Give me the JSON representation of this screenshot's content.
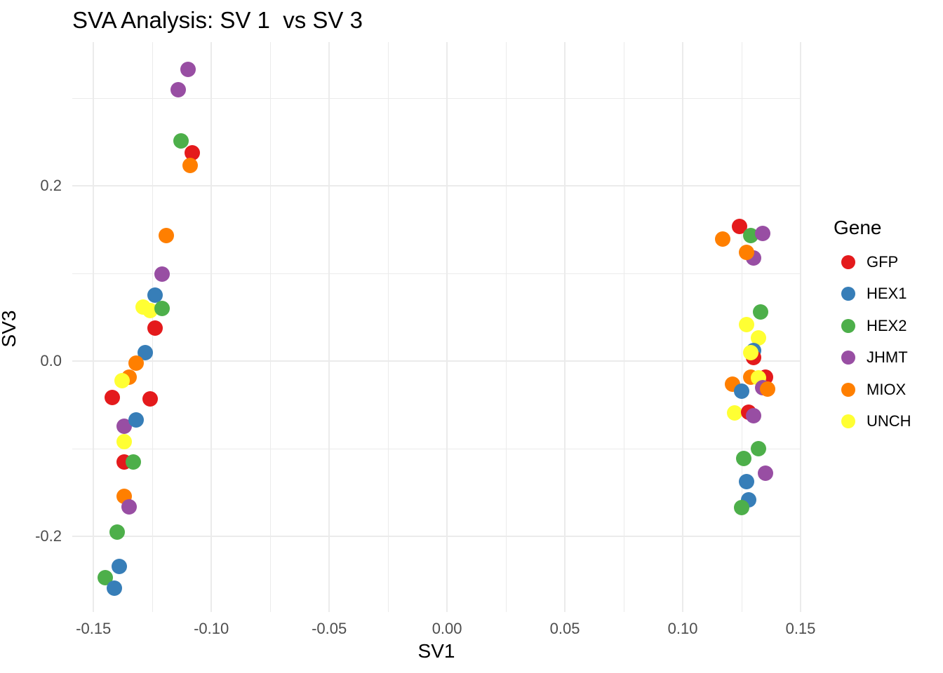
{
  "colors": {
    "background": "#FFFFFF",
    "grid": "#EBEBEB",
    "tick_text": "#4D4D4D",
    "text": "#000000"
  },
  "chart_data": {
    "type": "scatter",
    "title": "SVA Analysis: SV 1  vs SV 3",
    "xlabel": "SV1",
    "ylabel": "SV3",
    "xlim": [
      -0.159,
      0.15
    ],
    "ylim": [
      -0.286,
      0.364
    ],
    "grid": "on",
    "x_major_ticks": [
      {
        "value": -0.15,
        "label": "-0.15"
      },
      {
        "value": -0.1,
        "label": "-0.10"
      },
      {
        "value": -0.05,
        "label": "-0.05"
      },
      {
        "value": 0.0,
        "label": "0.00"
      },
      {
        "value": 0.05,
        "label": "0.05"
      },
      {
        "value": 0.1,
        "label": "0.10"
      },
      {
        "value": 0.15,
        "label": "0.15"
      }
    ],
    "x_minor_ticks": [
      -0.125,
      -0.075,
      -0.025,
      0.025,
      0.075,
      0.125
    ],
    "y_major_ticks": [
      {
        "value": 0.2,
        "label": "0.2"
      },
      {
        "value": 0.0,
        "label": "0.0"
      },
      {
        "value": -0.2,
        "label": "-0.2"
      }
    ],
    "y_minor_ticks": [
      0.3,
      0.1,
      -0.1
    ],
    "legend": {
      "title": "Gene",
      "position": "right",
      "entries": [
        {
          "label": "GFP",
          "color": "#E41A1C"
        },
        {
          "label": "HEX1",
          "color": "#377EB8"
        },
        {
          "label": "HEX2",
          "color": "#4DAF4A"
        },
        {
          "label": "JHMT",
          "color": "#984EA3"
        },
        {
          "label": "MIOX",
          "color": "#FF7F00"
        },
        {
          "label": "UNCH",
          "color": "#FFFF33"
        }
      ]
    },
    "gene_colors": {
      "GFP": "#E41A1C",
      "HEX1": "#377EB8",
      "HEX2": "#4DAF4A",
      "JHMT": "#984EA3",
      "MIOX": "#FF7F00",
      "UNCH": "#FFFF33"
    },
    "points": [
      {
        "gene": "JHMT",
        "x": -0.11,
        "y": 0.333
      },
      {
        "gene": "JHMT",
        "x": -0.114,
        "y": 0.31
      },
      {
        "gene": "HEX2",
        "x": -0.113,
        "y": 0.251
      },
      {
        "gene": "GFP",
        "x": -0.108,
        "y": 0.238
      },
      {
        "gene": "MIOX",
        "x": -0.109,
        "y": 0.223
      },
      {
        "gene": "MIOX",
        "x": -0.119,
        "y": 0.143
      },
      {
        "gene": "JHMT",
        "x": -0.121,
        "y": 0.099
      },
      {
        "gene": "HEX1",
        "x": -0.124,
        "y": 0.075
      },
      {
        "gene": "GFP",
        "x": -0.124,
        "y": 0.038
      },
      {
        "gene": "UNCH",
        "x": -0.129,
        "y": 0.062
      },
      {
        "gene": "UNCH",
        "x": -0.126,
        "y": 0.058
      },
      {
        "gene": "HEX2",
        "x": -0.121,
        "y": 0.06
      },
      {
        "gene": "HEX1",
        "x": -0.128,
        "y": 0.01
      },
      {
        "gene": "MIOX",
        "x": -0.132,
        "y": -0.002
      },
      {
        "gene": "MIOX",
        "x": -0.135,
        "y": -0.018
      },
      {
        "gene": "UNCH",
        "x": -0.138,
        "y": -0.022
      },
      {
        "gene": "GFP",
        "x": -0.142,
        "y": -0.041
      },
      {
        "gene": "GFP",
        "x": -0.126,
        "y": -0.043
      },
      {
        "gene": "JHMT",
        "x": -0.137,
        "y": -0.074
      },
      {
        "gene": "HEX1",
        "x": -0.132,
        "y": -0.067
      },
      {
        "gene": "UNCH",
        "x": -0.137,
        "y": -0.092
      },
      {
        "gene": "GFP",
        "x": -0.137,
        "y": -0.115
      },
      {
        "gene": "HEX2",
        "x": -0.133,
        "y": -0.115
      },
      {
        "gene": "MIOX",
        "x": -0.137,
        "y": -0.154
      },
      {
        "gene": "JHMT",
        "x": -0.135,
        "y": -0.166
      },
      {
        "gene": "HEX2",
        "x": -0.14,
        "y": -0.195
      },
      {
        "gene": "HEX1",
        "x": -0.139,
        "y": -0.234
      },
      {
        "gene": "HEX2",
        "x": -0.145,
        "y": -0.247
      },
      {
        "gene": "HEX1",
        "x": -0.141,
        "y": -0.259
      },
      {
        "gene": "GFP",
        "x": 0.124,
        "y": 0.154
      },
      {
        "gene": "MIOX",
        "x": 0.117,
        "y": 0.139
      },
      {
        "gene": "HEX2",
        "x": 0.129,
        "y": 0.143
      },
      {
        "gene": "JHMT",
        "x": 0.134,
        "y": 0.146
      },
      {
        "gene": "JHMT",
        "x": 0.13,
        "y": 0.118
      },
      {
        "gene": "MIOX",
        "x": 0.127,
        "y": 0.124
      },
      {
        "gene": "HEX2",
        "x": 0.133,
        "y": 0.056
      },
      {
        "gene": "UNCH",
        "x": 0.127,
        "y": 0.042
      },
      {
        "gene": "UNCH",
        "x": 0.132,
        "y": 0.027
      },
      {
        "gene": "HEX1",
        "x": 0.13,
        "y": 0.012
      },
      {
        "gene": "GFP",
        "x": 0.13,
        "y": 0.004
      },
      {
        "gene": "UNCH",
        "x": 0.129,
        "y": 0.01
      },
      {
        "gene": "MIOX",
        "x": 0.121,
        "y": -0.026
      },
      {
        "gene": "HEX1",
        "x": 0.125,
        "y": -0.034
      },
      {
        "gene": "MIOX",
        "x": 0.129,
        "y": -0.018
      },
      {
        "gene": "GFP",
        "x": 0.135,
        "y": -0.018
      },
      {
        "gene": "UNCH",
        "x": 0.132,
        "y": -0.019
      },
      {
        "gene": "JHMT",
        "x": 0.134,
        "y": -0.03
      },
      {
        "gene": "MIOX",
        "x": 0.136,
        "y": -0.032
      },
      {
        "gene": "UNCH",
        "x": 0.122,
        "y": -0.059
      },
      {
        "gene": "GFP",
        "x": 0.128,
        "y": -0.058
      },
      {
        "gene": "JHMT",
        "x": 0.13,
        "y": -0.062
      },
      {
        "gene": "HEX2",
        "x": 0.132,
        "y": -0.1
      },
      {
        "gene": "HEX2",
        "x": 0.126,
        "y": -0.111
      },
      {
        "gene": "JHMT",
        "x": 0.135,
        "y": -0.128
      },
      {
        "gene": "HEX1",
        "x": 0.127,
        "y": -0.137
      },
      {
        "gene": "HEX1",
        "x": 0.128,
        "y": -0.158
      },
      {
        "gene": "HEX2",
        "x": 0.125,
        "y": -0.167
      }
    ]
  }
}
